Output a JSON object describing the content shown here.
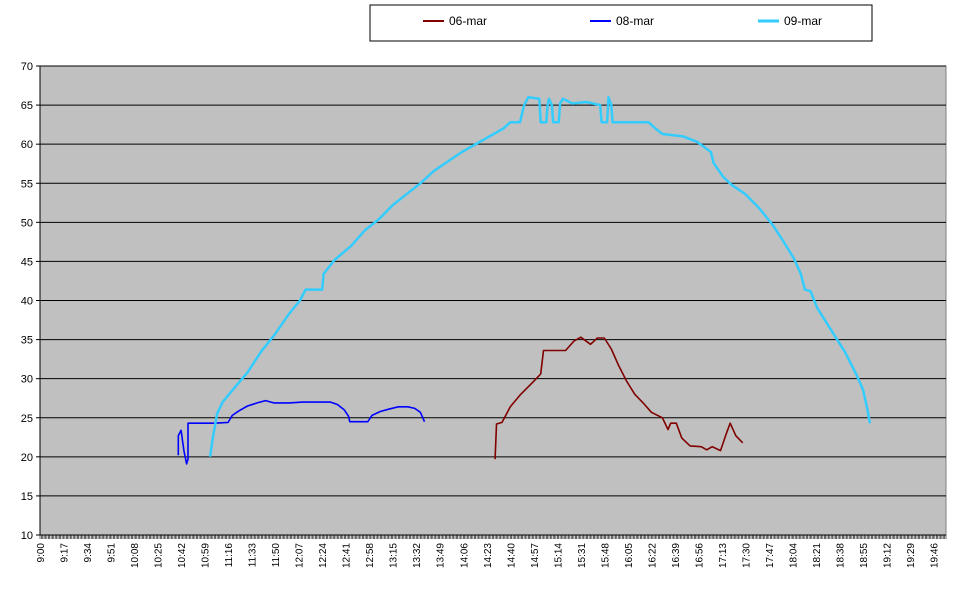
{
  "chart_data": {
    "type": "line",
    "title": "",
    "xlabel": "",
    "ylabel": "",
    "ylim": [
      10,
      70
    ],
    "yticks": [
      10,
      15,
      20,
      25,
      30,
      35,
      40,
      45,
      50,
      55,
      60,
      65,
      70
    ],
    "xlim": [
      "9:00",
      "19:55"
    ],
    "xticks": [
      "9:00",
      "9:17",
      "9:34",
      "9:51",
      "10:08",
      "10:25",
      "10:42",
      "10:59",
      "11:16",
      "11:33",
      "11:50",
      "12:07",
      "12:24",
      "12:41",
      "12:58",
      "13:15",
      "13:32",
      "13:49",
      "14:06",
      "14:23",
      "14:40",
      "14:57",
      "15:14",
      "15:31",
      "15:48",
      "16:05",
      "16:22",
      "16:39",
      "16:56",
      "17:13",
      "17:30",
      "17:47",
      "18:04",
      "18:21",
      "18:38",
      "18:55",
      "19:12",
      "19:29",
      "19:46"
    ],
    "grid": "horizontal",
    "plot_background": "#c0c0c0",
    "legend_position": "top",
    "series": [
      {
        "name": "06-mar",
        "color": "#800000",
        "points": [
          [
            "14:29",
            19.7
          ],
          [
            "14:30",
            24.2
          ],
          [
            "14:34",
            24.4
          ],
          [
            "14:40",
            26.4
          ],
          [
            "14:47",
            27.9
          ],
          [
            "14:55",
            29.3
          ],
          [
            "15:02",
            30.6
          ],
          [
            "15:04",
            33.6
          ],
          [
            "15:20",
            33.6
          ],
          [
            "15:26",
            34.8
          ],
          [
            "15:31",
            35.3
          ],
          [
            "15:38",
            34.4
          ],
          [
            "15:43",
            35.2
          ],
          [
            "15:48",
            35.2
          ],
          [
            "15:53",
            33.8
          ],
          [
            "15:58",
            31.8
          ],
          [
            "16:04",
            29.7
          ],
          [
            "16:10",
            28.0
          ],
          [
            "16:16",
            26.9
          ],
          [
            "16:22",
            25.7
          ],
          [
            "16:30",
            25.0
          ],
          [
            "16:34",
            23.5
          ],
          [
            "16:36",
            24.3
          ],
          [
            "16:40",
            24.3
          ],
          [
            "16:44",
            22.4
          ],
          [
            "16:50",
            21.4
          ],
          [
            "16:58",
            21.3
          ],
          [
            "17:02",
            20.9
          ],
          [
            "17:06",
            21.3
          ],
          [
            "17:12",
            20.8
          ],
          [
            "17:16",
            22.9
          ],
          [
            "17:19",
            24.3
          ],
          [
            "17:23",
            22.7
          ],
          [
            "17:28",
            21.8
          ]
        ]
      },
      {
        "name": "08-mar",
        "color": "#0000ff",
        "points": [
          [
            "10:40",
            20.2
          ],
          [
            "10:40",
            22.7
          ],
          [
            "10:42",
            23.4
          ],
          [
            "10:44",
            20.8
          ],
          [
            "10:46",
            19.1
          ],
          [
            "10:47",
            19.7
          ],
          [
            "10:47",
            24.3
          ],
          [
            "11:06",
            24.3
          ],
          [
            "11:16",
            24.4
          ],
          [
            "11:19",
            25.3
          ],
          [
            "11:24",
            25.9
          ],
          [
            "11:30",
            26.5
          ],
          [
            "11:37",
            26.9
          ],
          [
            "11:43",
            27.2
          ],
          [
            "11:49",
            26.9
          ],
          [
            "12:00",
            26.9
          ],
          [
            "12:10",
            27.0
          ],
          [
            "12:20",
            27.0
          ],
          [
            "12:30",
            27.0
          ],
          [
            "12:35",
            26.7
          ],
          [
            "12:40",
            26.0
          ],
          [
            "12:43",
            25.2
          ],
          [
            "12:44",
            24.5
          ],
          [
            "12:57",
            24.5
          ],
          [
            "13:00",
            25.3
          ],
          [
            "13:06",
            25.8
          ],
          [
            "13:12",
            26.1
          ],
          [
            "13:19",
            26.4
          ],
          [
            "13:26",
            26.4
          ],
          [
            "13:31",
            26.2
          ],
          [
            "13:35",
            25.7
          ],
          [
            "13:38",
            24.5
          ]
        ]
      },
      {
        "name": "09-mar",
        "color": "#33ccff",
        "points": [
          [
            "11:03",
            20.0
          ],
          [
            "11:05",
            22.5
          ],
          [
            "11:08",
            25.5
          ],
          [
            "11:12",
            27.0
          ],
          [
            "11:20",
            28.7
          ],
          [
            "11:30",
            30.8
          ],
          [
            "11:40",
            33.5
          ],
          [
            "11:50",
            35.7
          ],
          [
            "12:00",
            38.3
          ],
          [
            "12:08",
            40.0
          ],
          [
            "12:12",
            41.4
          ],
          [
            "12:24",
            41.4
          ],
          [
            "12:25",
            43.4
          ],
          [
            "12:33",
            45.2
          ],
          [
            "12:45",
            47.0
          ],
          [
            "12:55",
            49.0
          ],
          [
            "13:05",
            50.4
          ],
          [
            "13:15",
            52.2
          ],
          [
            "13:25",
            53.6
          ],
          [
            "13:35",
            55.0
          ],
          [
            "13:45",
            56.6
          ],
          [
            "13:55",
            57.8
          ],
          [
            "14:05",
            59.0
          ],
          [
            "14:15",
            60.0
          ],
          [
            "14:25",
            61.0
          ],
          [
            "14:35",
            62.0
          ],
          [
            "14:40",
            62.8
          ],
          [
            "14:47",
            62.8
          ],
          [
            "14:50",
            65.0
          ],
          [
            "14:53",
            66.0
          ],
          [
            "15:01",
            65.8
          ],
          [
            "15:02",
            62.8
          ],
          [
            "15:06",
            62.8
          ],
          [
            "15:07",
            65.0
          ],
          [
            "15:08",
            65.8
          ],
          [
            "15:10",
            65.0
          ],
          [
            "15:11",
            62.8
          ],
          [
            "15:15",
            62.8
          ],
          [
            "15:16",
            65.2
          ],
          [
            "15:18",
            65.8
          ],
          [
            "15:25",
            65.2
          ],
          [
            "15:35",
            65.4
          ],
          [
            "15:45",
            65.0
          ],
          [
            "15:46",
            62.8
          ],
          [
            "15:50",
            62.8
          ],
          [
            "15:51",
            66.0
          ],
          [
            "15:53",
            65.0
          ],
          [
            "15:54",
            62.8
          ],
          [
            "16:20",
            62.8
          ],
          [
            "16:25",
            62.0
          ],
          [
            "16:30",
            61.3
          ],
          [
            "16:45",
            61.0
          ],
          [
            "16:55",
            60.3
          ],
          [
            "17:05",
            59.0
          ],
          [
            "17:07",
            57.6
          ],
          [
            "17:14",
            55.8
          ],
          [
            "17:20",
            54.8
          ],
          [
            "17:30",
            53.6
          ],
          [
            "17:40",
            51.8
          ],
          [
            "17:50",
            49.6
          ],
          [
            "17:58",
            47.4
          ],
          [
            "18:05",
            45.4
          ],
          [
            "18:10",
            43.4
          ],
          [
            "18:13",
            41.4
          ],
          [
            "18:17",
            41.2
          ],
          [
            "18:22",
            39.0
          ],
          [
            "18:32",
            36.2
          ],
          [
            "18:42",
            33.4
          ],
          [
            "18:50",
            30.6
          ],
          [
            "18:55",
            28.6
          ],
          [
            "18:58",
            26.2
          ],
          [
            "19:00",
            24.3
          ]
        ]
      }
    ]
  }
}
